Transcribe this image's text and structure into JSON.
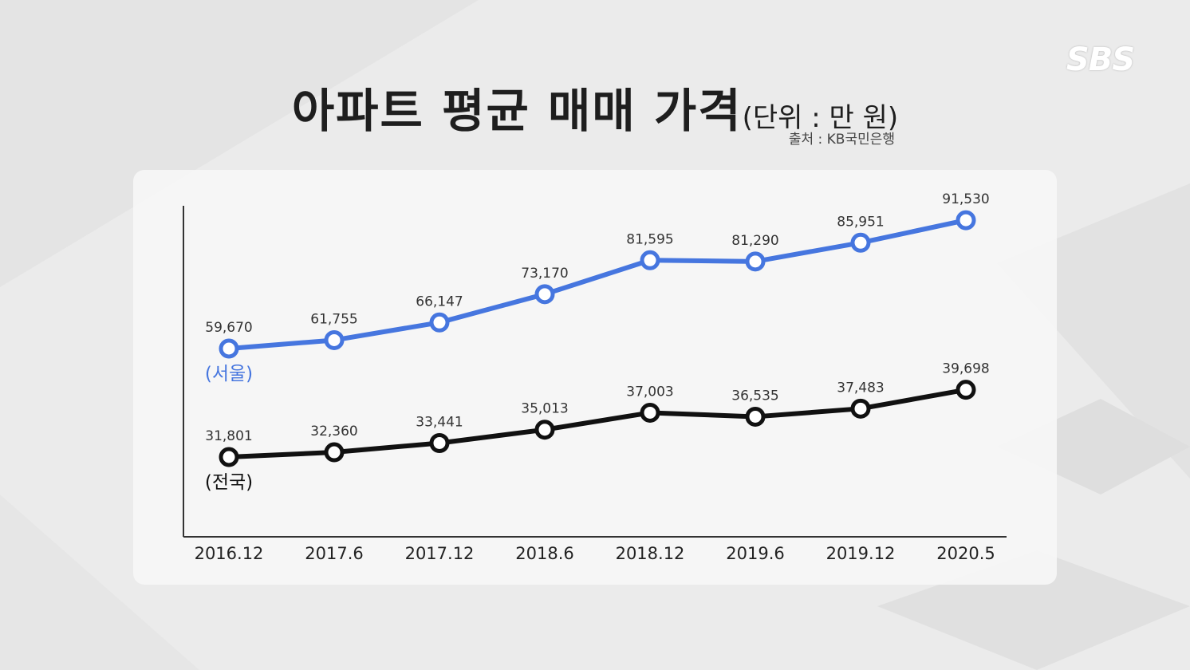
{
  "broadcaster_logo": "SBS",
  "title": {
    "main": "아파트 평균 매매 가격",
    "unit": "(단위 : 만 원)"
  },
  "source": "출처 : KB국민은행",
  "colors": {
    "seoul": "#4676df",
    "national": "#111111",
    "axis": "#333333"
  },
  "chart_data": {
    "type": "line",
    "categories": [
      "2016.12",
      "2017.6",
      "2017.12",
      "2018.6",
      "2018.12",
      "2019.6",
      "2019.12",
      "2020.5"
    ],
    "series": [
      {
        "name": "(서울)",
        "values": [
          59670,
          61755,
          66147,
          73170,
          81595,
          81290,
          85951,
          91530
        ],
        "labels": [
          "59,670",
          "61,755",
          "66,147",
          "73,170",
          "81,595",
          "81,290",
          "85,951",
          "91,530"
        ]
      },
      {
        "name": "(전국)",
        "values": [
          31801,
          32360,
          33441,
          35013,
          37003,
          36535,
          37483,
          39698
        ],
        "labels": [
          "31,801",
          "32,360",
          "33,441",
          "35,013",
          "37,003",
          "36,535",
          "37,483",
          "39,698"
        ]
      }
    ],
    "title": "아파트 평균 매매 가격",
    "xlabel": "",
    "ylabel": "",
    "grid": false,
    "legend": "inline-left"
  }
}
